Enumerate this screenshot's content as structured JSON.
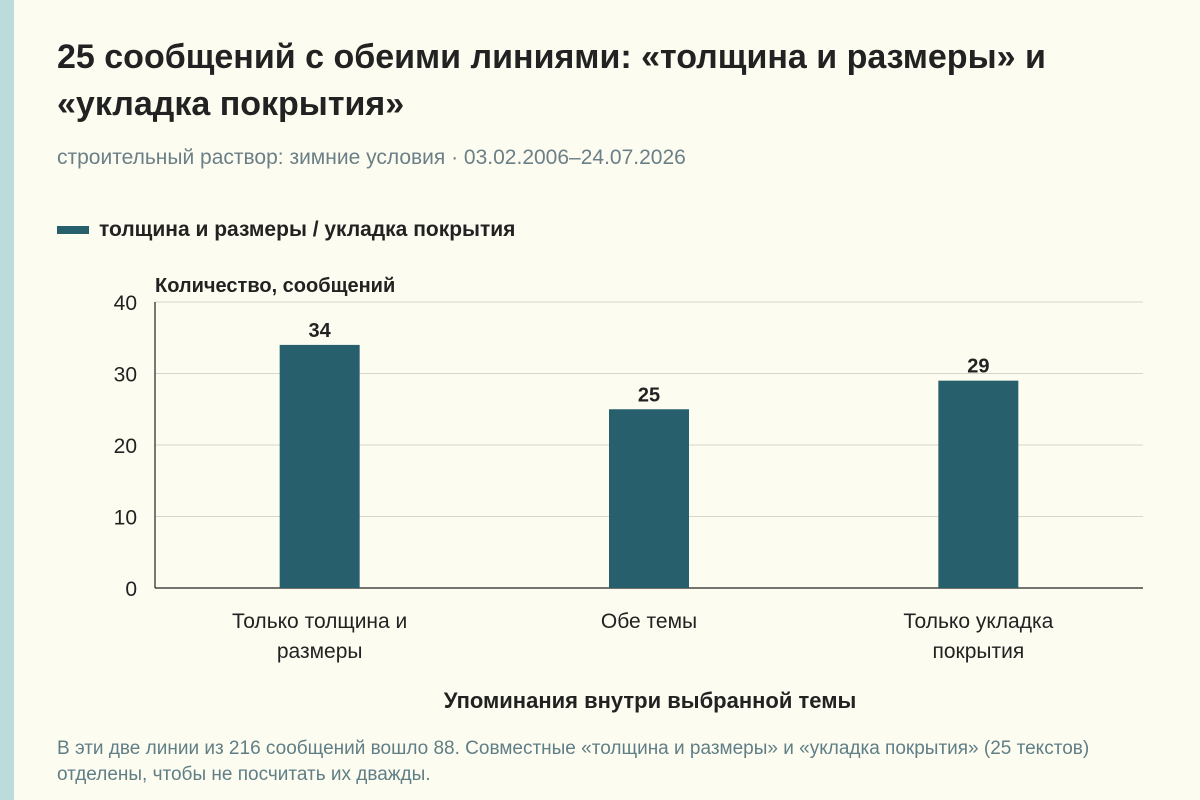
{
  "title": "25 сообщений с обеими линиями: «толщина и размеры» и «укладка покрытия»",
  "subtitle": "строительный раствор: зимние условия · 03.02.2006–24.07.2026",
  "footnote": "В эти две линии из 216 сообщений вошло 88. Совместные «толщина и размеры» и «укладка покрытия» (25 текстов) отделены, чтобы не посчитать их дважды.",
  "colors": {
    "bar": "#27606c",
    "accent_strip": "#bcdcdc",
    "background": "#fdfcf0"
  },
  "chart_data": {
    "type": "bar",
    "categories": [
      "Только толщина и размеры",
      "Обе темы",
      "Только укладка покрытия"
    ],
    "series": [
      {
        "name": "толщина и размеры / укладка покрытия",
        "values": [
          34,
          25,
          29
        ]
      }
    ],
    "ylabel": "Количество, сообщений",
    "xlabel": "Упоминания внутри выбранной темы",
    "ylim": [
      0,
      40
    ],
    "yticks": [
      0,
      10,
      20,
      30,
      40
    ],
    "grid": true,
    "legend": "top-left",
    "data_labels": true
  }
}
